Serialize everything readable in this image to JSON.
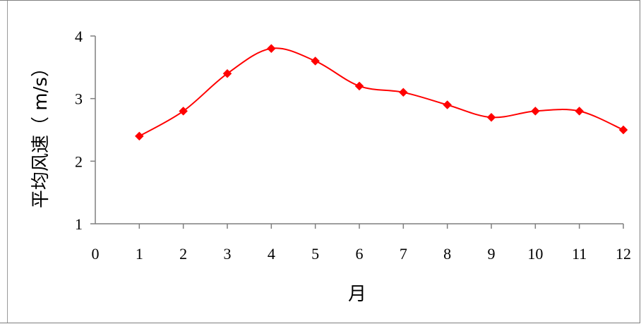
{
  "chart_data": {
    "type": "line",
    "xlabel": "月",
    "ylabel": "平均风速（ m/s）",
    "xlim": [
      0,
      12
    ],
    "ylim": [
      1,
      4
    ],
    "x_ticks": [
      "0",
      "1",
      "2",
      "3",
      "4",
      "5",
      "6",
      "7",
      "8",
      "9",
      "10",
      "11",
      "12"
    ],
    "y_ticks": [
      "1",
      "2",
      "3",
      "4"
    ],
    "grid": false,
    "smooth": true,
    "marker": "diamond",
    "line_color": "#ff0000",
    "marker_color": "#ff0000",
    "series": [
      {
        "x": [
          1,
          2,
          3,
          4,
          5,
          6,
          7,
          8,
          9,
          10,
          11,
          12
        ],
        "values": [
          2.4,
          2.8,
          3.4,
          3.8,
          3.6,
          3.2,
          3.1,
          2.9,
          2.7,
          2.8,
          2.8,
          2.5
        ]
      }
    ]
  }
}
